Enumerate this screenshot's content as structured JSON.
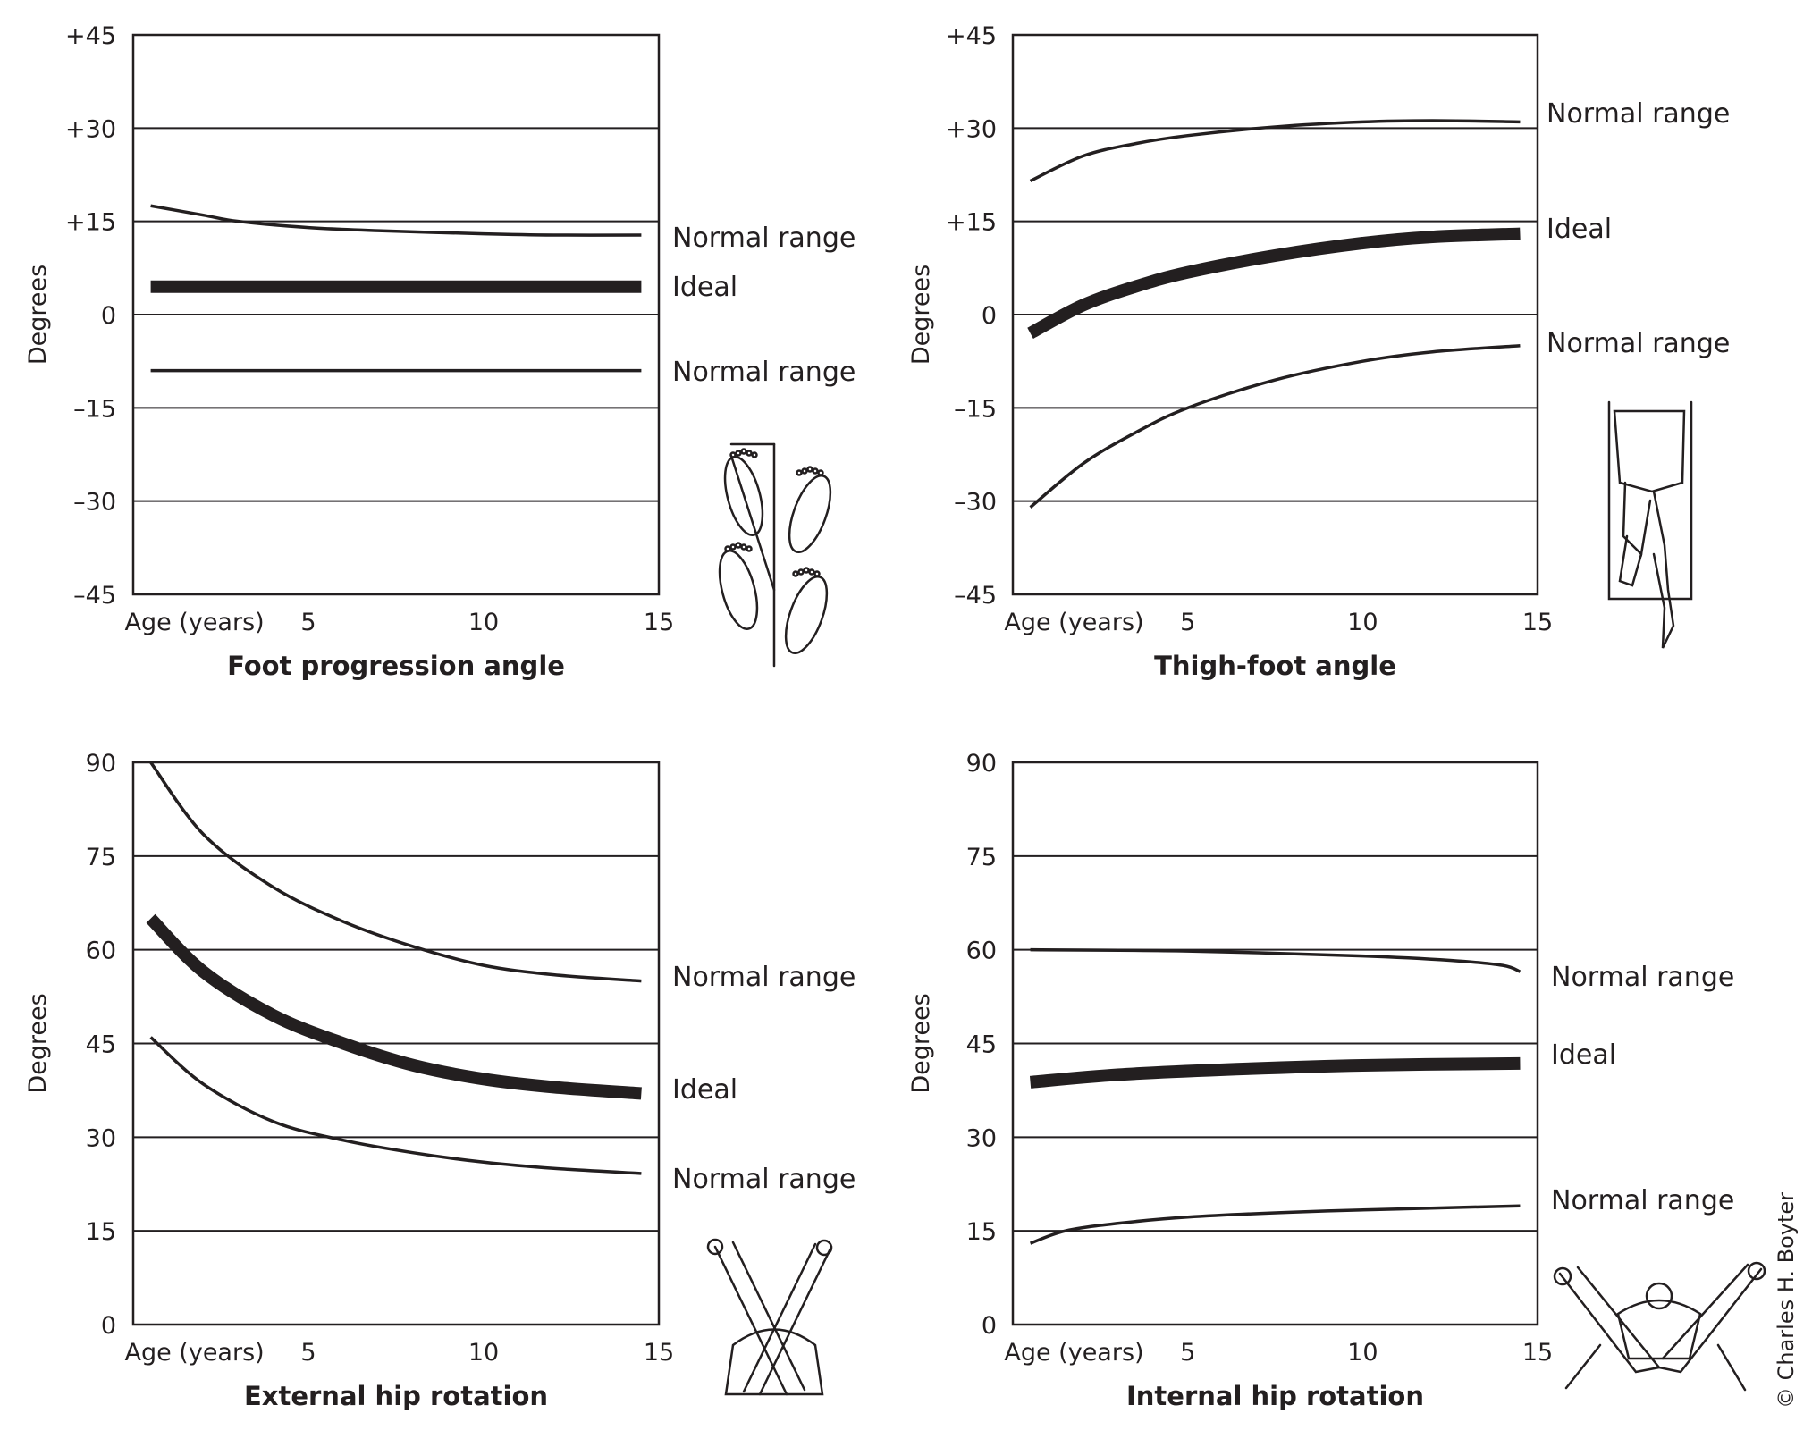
{
  "copyright": "© Charles H. Boyter",
  "colors": {
    "ink": "#231f20",
    "background": "#ffffff"
  },
  "chart_data": [
    {
      "type": "line",
      "title": "Foot progression angle",
      "ylabel": "Degrees",
      "xlabel": "Age (years)",
      "xlim": [
        0,
        15
      ],
      "ylim": [
        -45,
        45
      ],
      "x_ticks": [
        "5",
        "10",
        "15"
      ],
      "y_ticks": [
        "+45",
        "+30",
        "+15",
        "0",
        "–15",
        "–30",
        "–45"
      ],
      "grid": "horizontal",
      "illustration": "feet-footprints",
      "series": [
        {
          "name": "Normal range",
          "role": "upper",
          "x": [
            0.5,
            2,
            3,
            5,
            7,
            10,
            12,
            14.5
          ],
          "y": [
            17.5,
            16,
            15,
            14,
            13.5,
            13,
            12.8,
            12.8
          ]
        },
        {
          "name": "Ideal",
          "role": "ideal",
          "x": [
            0.5,
            14.5
          ],
          "y": [
            4.5,
            4.5
          ]
        },
        {
          "name": "Normal range",
          "role": "lower",
          "x": [
            0.5,
            14.5
          ],
          "y": [
            -9,
            -9
          ]
        }
      ]
    },
    {
      "type": "line",
      "title": "Thigh-foot angle",
      "ylabel": "Degrees",
      "xlabel": "Age (years)",
      "xlim": [
        0,
        15
      ],
      "ylim": [
        -45,
        45
      ],
      "x_ticks": [
        "5",
        "10",
        "15"
      ],
      "y_ticks": [
        "+45",
        "+30",
        "+15",
        "0",
        "–15",
        "–30",
        "–45"
      ],
      "grid": "horizontal",
      "illustration": "prone-leg",
      "series": [
        {
          "name": "Normal range",
          "role": "upper",
          "x": [
            0.5,
            2,
            3.5,
            5,
            7.5,
            10,
            12,
            14.5
          ],
          "y": [
            21.5,
            25.5,
            27.5,
            28.8,
            30.2,
            31,
            31.2,
            31
          ]
        },
        {
          "name": "Ideal",
          "role": "ideal",
          "x": [
            0.5,
            2,
            3.5,
            5,
            7.5,
            10,
            12,
            14.5
          ],
          "y": [
            -3,
            1.5,
            4.5,
            6.8,
            9.5,
            11.5,
            12.5,
            13
          ]
        },
        {
          "name": "Normal range",
          "role": "lower",
          "x": [
            0.5,
            2,
            3.5,
            5,
            7.5,
            10,
            12,
            14.5
          ],
          "y": [
            -31,
            -24,
            -19,
            -15,
            -10.5,
            -7.5,
            -6,
            -5
          ]
        }
      ]
    },
    {
      "type": "line",
      "title": "External hip rotation",
      "ylabel": "Degrees",
      "xlabel": "Age (years)",
      "xlim": [
        0,
        15
      ],
      "ylim": [
        0,
        90
      ],
      "x_ticks": [
        "5",
        "10",
        "15"
      ],
      "y_ticks": [
        "90",
        "75",
        "60",
        "45",
        "30",
        "15",
        "0"
      ],
      "grid": "horizontal",
      "illustration": "external-rotation-legs",
      "series": [
        {
          "name": "Normal range",
          "role": "upper",
          "x": [
            0.5,
            2,
            4,
            6,
            8,
            10,
            12,
            14.5
          ],
          "y": [
            90,
            78.5,
            70,
            64.5,
            60.5,
            57.5,
            56,
            55
          ]
        },
        {
          "name": "Ideal",
          "role": "ideal",
          "x": [
            0.5,
            2,
            4,
            6,
            8,
            10,
            12,
            14.5
          ],
          "y": [
            65,
            56.5,
            49.5,
            45,
            41.5,
            39.3,
            38,
            37
          ]
        },
        {
          "name": "Normal range",
          "role": "lower",
          "x": [
            0.5,
            2,
            4,
            6,
            8,
            10,
            12,
            14.5
          ],
          "y": [
            46,
            38.5,
            32.5,
            29.5,
            27.5,
            26,
            25,
            24.2
          ]
        }
      ]
    },
    {
      "type": "line",
      "title": "Internal hip rotation",
      "ylabel": "Degrees",
      "xlabel": "Age (years)",
      "xlim": [
        0,
        15
      ],
      "ylim": [
        0,
        90
      ],
      "x_ticks": [
        "5",
        "10",
        "15"
      ],
      "y_ticks": [
        "90",
        "75",
        "60",
        "45",
        "30",
        "15",
        "0"
      ],
      "grid": "horizontal",
      "illustration": "internal-rotation-legs",
      "series": [
        {
          "name": "Normal range",
          "role": "upper",
          "x": [
            0.5,
            5,
            10,
            12.5,
            14,
            14.5
          ],
          "y": [
            60,
            59.8,
            59,
            58.3,
            57.5,
            56.5
          ]
        },
        {
          "name": "Ideal",
          "role": "ideal",
          "x": [
            0.5,
            3,
            6,
            10,
            14.5
          ],
          "y": [
            38.8,
            40,
            40.8,
            41.5,
            41.8
          ]
        },
        {
          "name": "Normal range",
          "role": "lower",
          "x": [
            0.5,
            1.5,
            3,
            5,
            8,
            11,
            14.5
          ],
          "y": [
            13,
            15,
            16.2,
            17.2,
            18,
            18.5,
            19
          ]
        }
      ]
    }
  ]
}
